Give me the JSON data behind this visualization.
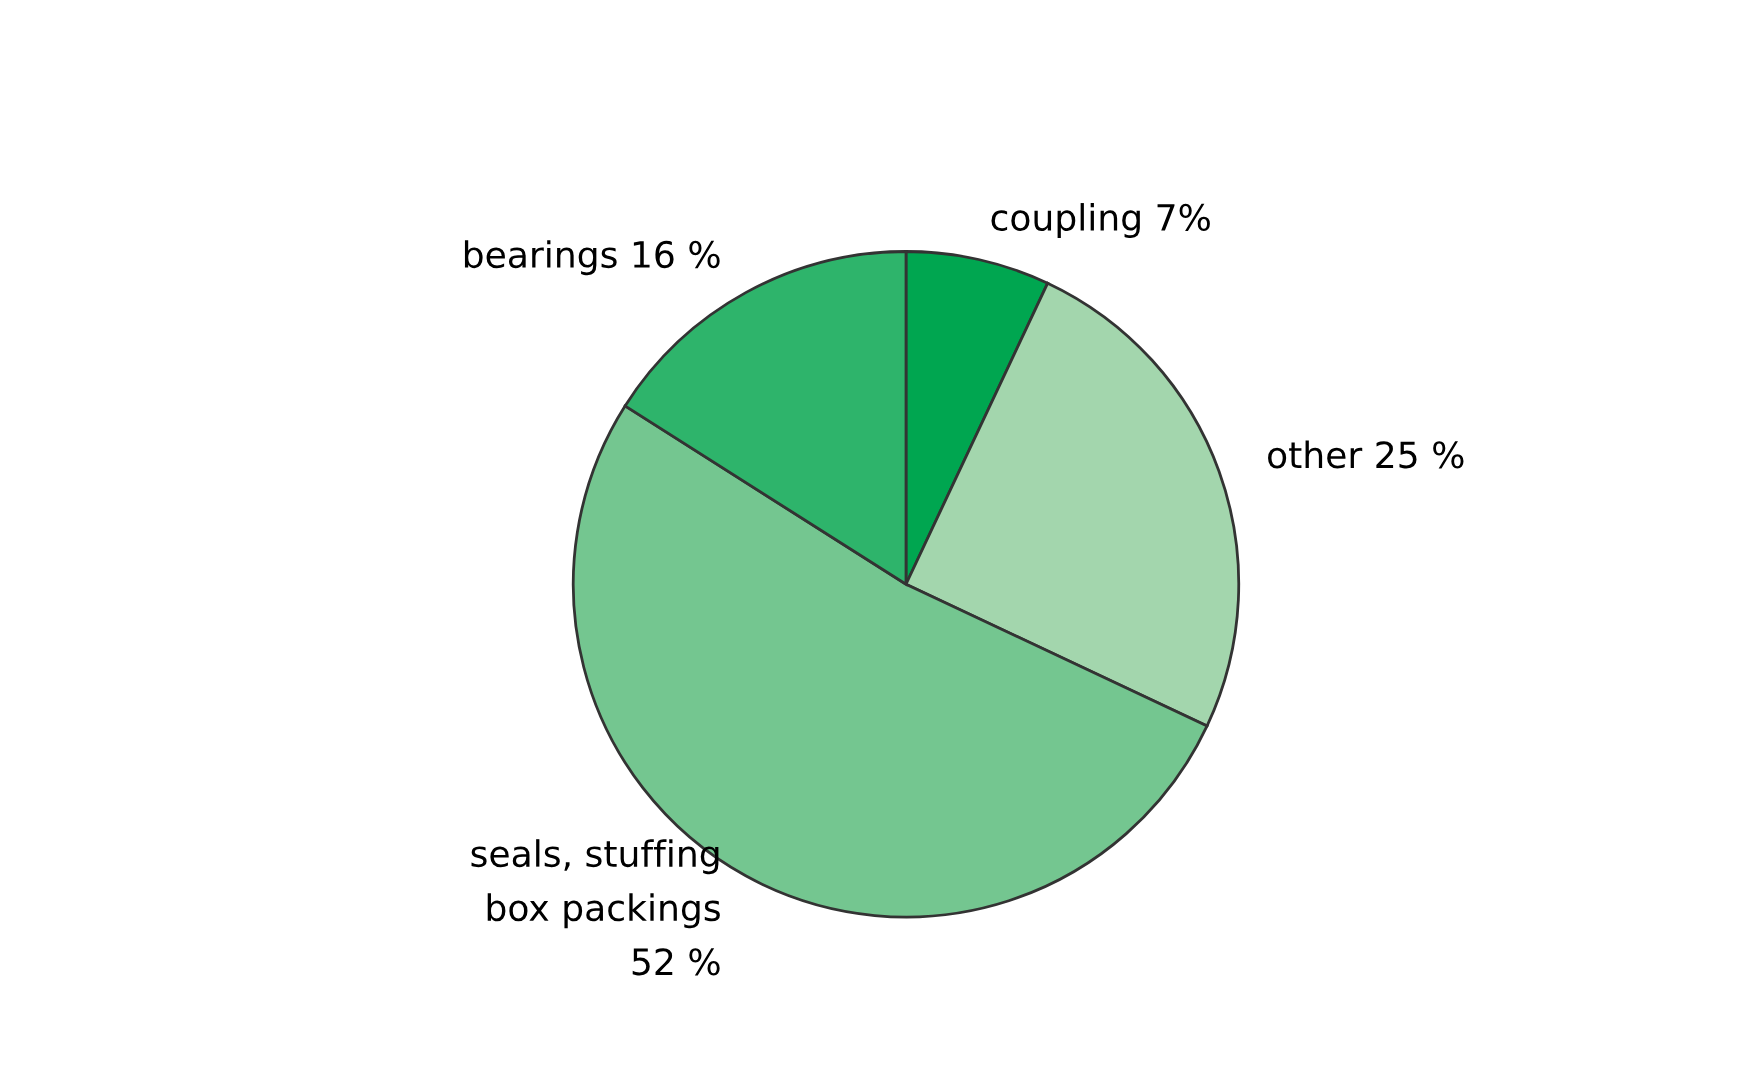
{
  "chart_data": {
    "type": "pie",
    "categories": [
      "coupling",
      "other",
      "seals, stuffing\nbox packings",
      "bearings"
    ],
    "values": [
      7,
      25,
      52,
      16
    ],
    "value_labels": [
      "7%",
      "25 %",
      "52 %",
      "16 %"
    ],
    "colors": [
      "#00a650",
      "#a3d6ad",
      "#74c690",
      "#2eb46b"
    ],
    "legend": false
  }
}
